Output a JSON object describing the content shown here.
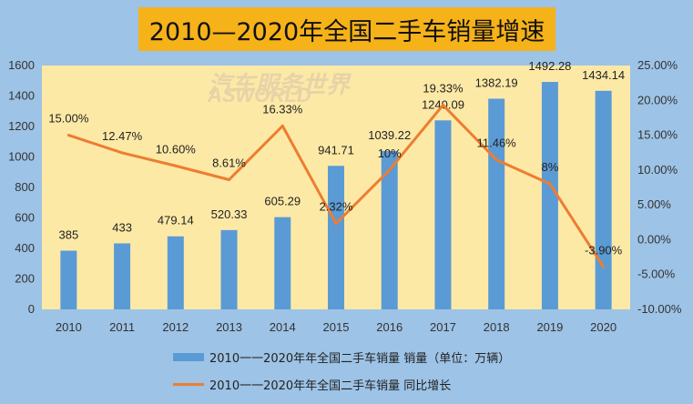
{
  "title": "2010—2020年全国二手车销量增速",
  "watermark": {
    "line1": "汽车服务世界",
    "line2": "ASWORLD"
  },
  "colors": {
    "background": "#9dc3e6",
    "plot_area": "#fde9a6",
    "bars": "#5b9bd5",
    "line": "#ed7d31",
    "title_box": "#f6b219"
  },
  "chart_data": {
    "type": "bar+line",
    "categories": [
      "2010",
      "2011",
      "2012",
      "2013",
      "2014",
      "2015",
      "2016",
      "2017",
      "2018",
      "2019",
      "2020"
    ],
    "series": [
      {
        "name": "2010一一2020年年全国二手车销量 销量（单位：万辆）",
        "type": "bar",
        "axis": "left",
        "values": [
          385,
          433,
          479.14,
          520.33,
          605.29,
          941.71,
          1039.22,
          1240.09,
          1382.19,
          1492.28,
          1434.14
        ],
        "labels": [
          "385",
          "433",
          "479.14",
          "520.33",
          "605.29",
          "941.71",
          "1039.22",
          "1240.09",
          "1382.19",
          "1492.28",
          "1434.14"
        ]
      },
      {
        "name": "2010一一2020年年全国二手车销量 同比增长",
        "type": "line",
        "axis": "right",
        "values": [
          15.0,
          12.47,
          10.6,
          8.61,
          16.33,
          2.32,
          10.0,
          19.33,
          11.46,
          8.0,
          -3.9
        ],
        "labels": [
          "15.00%",
          "12.47%",
          "10.60%",
          "8.61%",
          "16.33%",
          "2.32%",
          "10%",
          "19.33%",
          "11.46%",
          "8%",
          "-3.90%"
        ]
      }
    ],
    "y_left": {
      "min": 0,
      "max": 1600,
      "ticks": [
        "0",
        "200",
        "400",
        "600",
        "800",
        "1000",
        "1200",
        "1400",
        "1600"
      ]
    },
    "y_right": {
      "min": -10,
      "max": 25,
      "ticks": [
        "-10.00%",
        "-5.00%",
        "0.00%",
        "5.00%",
        "10.00%",
        "15.00%",
        "20.00%",
        "25.00%"
      ]
    },
    "legend_position": "bottom",
    "grid": false
  }
}
